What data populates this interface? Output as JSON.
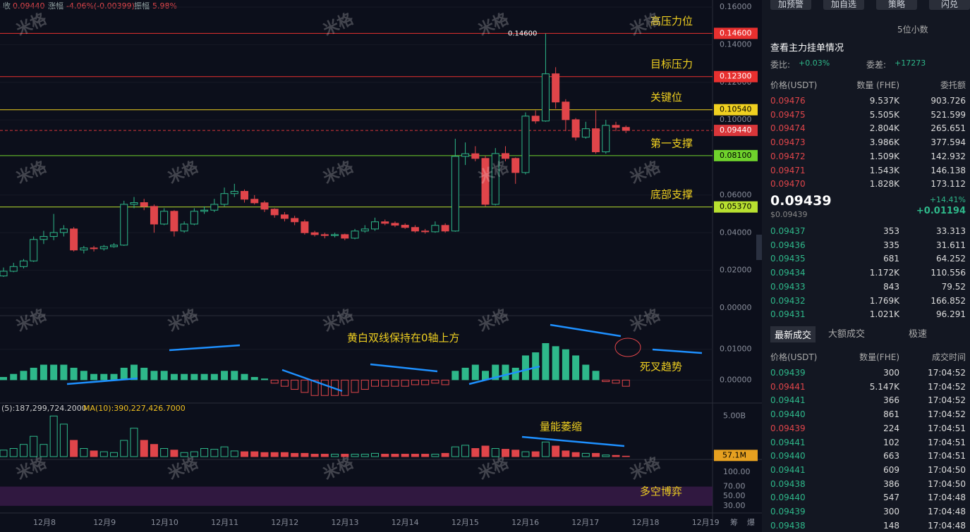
{
  "header": {
    "close_label": "收",
    "close": "0.09440",
    "change_label": "涨幅",
    "change": "-4.06%(-0.00399)",
    "amp_label": "振幅",
    "amp": "5.98%"
  },
  "watermark": "米格",
  "price_chart": {
    "ylim": [
      0,
      0.16
    ],
    "yticks": [
      {
        "value": 0.16,
        "label": "0.16000"
      },
      {
        "value": 0.14,
        "label": "0.14000"
      },
      {
        "value": 0.12,
        "label": "0.12000"
      },
      {
        "value": 0.1,
        "label": "0.10000"
      },
      {
        "value": 0.06,
        "label": "0.06000"
      },
      {
        "value": 0.04,
        "label": "0.04000"
      },
      {
        "value": 0.02,
        "label": "0.02000"
      },
      {
        "value": 0,
        "label": "0.00000"
      }
    ],
    "up_color": "#2eb88a",
    "down_color": "#e0454a",
    "candles": [
      [
        0.017,
        0.0215,
        0.0165,
        0.0195
      ],
      [
        0.0195,
        0.024,
        0.019,
        0.022
      ],
      [
        0.022,
        0.026,
        0.021,
        0.025
      ],
      [
        0.025,
        0.038,
        0.0245,
        0.0364
      ],
      [
        0.0364,
        0.041,
        0.034,
        0.038
      ],
      [
        0.038,
        0.05,
        0.036,
        0.0401
      ],
      [
        0.0401,
        0.044,
        0.038,
        0.042
      ],
      [
        0.042,
        0.043,
        0.03,
        0.0308
      ],
      [
        0.0308,
        0.033,
        0.029,
        0.0319
      ],
      [
        0.0319,
        0.033,
        0.03,
        0.0315
      ],
      [
        0.0315,
        0.0335,
        0.0305,
        0.0326
      ],
      [
        0.0326,
        0.0345,
        0.032,
        0.0334
      ],
      [
        0.0334,
        0.057,
        0.033,
        0.0551
      ],
      [
        0.0551,
        0.059,
        0.053,
        0.056
      ],
      [
        0.056,
        0.058,
        0.052,
        0.054
      ],
      [
        0.054,
        0.055,
        0.04,
        0.0446
      ],
      [
        0.0446,
        0.053,
        0.044,
        0.0514
      ],
      [
        0.0514,
        0.052,
        0.038,
        0.0409
      ],
      [
        0.0409,
        0.046,
        0.04,
        0.0446
      ],
      [
        0.0446,
        0.053,
        0.044,
        0.0514
      ],
      [
        0.0514,
        0.054,
        0.05,
        0.052
      ],
      [
        0.052,
        0.058,
        0.051,
        0.0551
      ],
      [
        0.0551,
        0.064,
        0.054,
        0.0608
      ],
      [
        0.0608,
        0.066,
        0.059,
        0.062
      ],
      [
        0.062,
        0.063,
        0.056,
        0.0578
      ],
      [
        0.0578,
        0.06,
        0.055,
        0.0559
      ],
      [
        0.0559,
        0.057,
        0.051,
        0.0525
      ],
      [
        0.0525,
        0.053,
        0.048,
        0.0495
      ],
      [
        0.0495,
        0.051,
        0.046,
        0.0476
      ],
      [
        0.0476,
        0.049,
        0.044,
        0.0458
      ],
      [
        0.0458,
        0.047,
        0.039,
        0.04
      ],
      [
        0.04,
        0.041,
        0.038,
        0.039
      ],
      [
        0.039,
        0.04,
        0.037,
        0.0385
      ],
      [
        0.0385,
        0.04,
        0.0375,
        0.039
      ],
      [
        0.039,
        0.0395,
        0.036,
        0.0371
      ],
      [
        0.0371,
        0.042,
        0.0365,
        0.0409
      ],
      [
        0.0409,
        0.044,
        0.04,
        0.042
      ],
      [
        0.042,
        0.048,
        0.041,
        0.0458
      ],
      [
        0.0458,
        0.047,
        0.044,
        0.045
      ],
      [
        0.045,
        0.046,
        0.043,
        0.044
      ],
      [
        0.044,
        0.045,
        0.042,
        0.0428
      ],
      [
        0.0428,
        0.044,
        0.04,
        0.0409
      ],
      [
        0.0409,
        0.042,
        0.0395,
        0.0405
      ],
      [
        0.0405,
        0.046,
        0.04,
        0.0439
      ],
      [
        0.0439,
        0.045,
        0.04,
        0.0409
      ],
      [
        0.0409,
        0.09,
        0.0405,
        0.0806
      ],
      [
        0.0806,
        0.088,
        0.076,
        0.082
      ],
      [
        0.082,
        0.086,
        0.078,
        0.0795
      ],
      [
        0.0795,
        0.081,
        0.054,
        0.0551
      ],
      [
        0.0551,
        0.085,
        0.0545,
        0.0821
      ],
      [
        0.0821,
        0.086,
        0.078,
        0.0795
      ],
      [
        0.0795,
        0.08,
        0.066,
        0.072
      ],
      [
        0.072,
        0.104,
        0.071,
        0.102
      ],
      [
        0.102,
        0.105,
        0.098,
        0.0994
      ],
      [
        0.0994,
        0.146,
        0.099,
        0.1245
      ],
      [
        0.1245,
        0.128,
        0.106,
        0.1095
      ],
      [
        0.1095,
        0.111,
        0.094,
        0.1001
      ],
      [
        0.1001,
        0.101,
        0.089,
        0.0908
      ],
      [
        0.0908,
        0.099,
        0.09,
        0.0953
      ],
      [
        0.0953,
        0.105,
        0.082,
        0.083
      ],
      [
        0.083,
        0.1,
        0.082,
        0.0971
      ],
      [
        0.0971,
        0.099,
        0.094,
        0.096
      ],
      [
        0.096,
        0.097,
        0.093,
        0.0944
      ]
    ],
    "levels": [
      {
        "value": 0.146,
        "label": "0.14600",
        "color": "#e8302f",
        "note": "高压力位"
      },
      {
        "value": 0.123,
        "label": "0.12300",
        "color": "#e8302f",
        "note": "目标压力"
      },
      {
        "value": 0.1054,
        "label": "0.10540",
        "color": "#f0d020",
        "note": "关键位"
      },
      {
        "value": 0.0944,
        "label": "0.09440",
        "color": "#d9363a",
        "dashed": true
      },
      {
        "value": 0.081,
        "label": "0.08100",
        "color": "#6fd22c",
        "note": "第一支撑"
      },
      {
        "value": 0.0537,
        "label": "0.05370",
        "color": "#b8e030",
        "note": "底部支撑"
      }
    ]
  },
  "macd": {
    "ylim": [
      -0.007,
      0.02
    ],
    "yticks": [
      {
        "value": 0.01,
        "label": "0.01000"
      },
      {
        "value": 0,
        "label": "0.00000"
      }
    ],
    "values": [
      0.001,
      0.002,
      0.003,
      0.004,
      0.005,
      0.005,
      0.005,
      0.004,
      0.003,
      0.002,
      0.002,
      0.002,
      0.004,
      0.005,
      0.004,
      0.003,
      0.003,
      0.002,
      0.002,
      0.002,
      0.002,
      0.002,
      0.003,
      0.003,
      0.002,
      0.001,
      0.0005,
      -0.001,
      -0.002,
      -0.003,
      -0.004,
      -0.005,
      -0.005,
      -0.005,
      -0.005,
      -0.004,
      -0.003,
      -0.002,
      -0.002,
      -0.002,
      -0.002,
      -0.0015,
      -0.0015,
      -0.001,
      -0.0015,
      0.003,
      0.004,
      0.005,
      0.003,
      0.005,
      0.005,
      0.004,
      0.008,
      0.009,
      0.012,
      0.011,
      0.01,
      0.008,
      0.005,
      0.003,
      -0.0005,
      -0.001,
      -0.002
    ],
    "notes": [
      "黄白双线保持在0轴上方",
      "死叉趋势"
    ]
  },
  "volume": {
    "legend": "(5):187,299,724.2000",
    "ma10": "MA(10):390,227,426.7000",
    "ylim": [
      0,
      5900000000
    ],
    "yticks": [
      {
        "value": 5000000000,
        "label": "5.00B"
      }
    ],
    "last_label": "57.1M",
    "note": "量能萎缩",
    "values": [
      800000000,
      1000000000,
      1500000000,
      2500000000,
      1500000000,
      5000000000,
      4000000000,
      2000000000,
      1000000000,
      700000000,
      600000000,
      500000000,
      2000000000,
      3500000000,
      2000000000,
      1500000000,
      1000000000,
      800000000,
      500000000,
      600000000,
      1000000000,
      900000000,
      1200000000,
      700000000,
      600000000,
      600000000,
      500000000,
      500000000,
      500000000,
      400000000,
      400000000,
      300000000,
      300000000,
      300000000,
      300000000,
      300000000,
      300000000,
      400000000,
      300000000,
      300000000,
      300000000,
      300000000,
      300000000,
      300000000,
      400000000,
      1200000000,
      1400000000,
      1000000000,
      1300000000,
      1000000000,
      900000000,
      800000000,
      600000000,
      600000000,
      1800000000,
      1300000000,
      700000000,
      500000000,
      400000000,
      400000000,
      200000000,
      150000000,
      57100000
    ]
  },
  "rsi": {
    "ylim": [
      24,
      122
    ],
    "band": [
      30,
      70
    ],
    "yticks": [
      {
        "value": 100,
        "label": "100.00"
      },
      {
        "value": 70,
        "label": "70.00"
      },
      {
        "value": 50,
        "label": "50.00"
      },
      {
        "value": 30,
        "label": "30.00"
      }
    ],
    "note": "多空博弈"
  },
  "xaxis": [
    "12月8",
    "12月9",
    "12月10",
    "12月11",
    "12月12",
    "12月13",
    "12月14",
    "12月15",
    "12月16",
    "12月17",
    "12月18",
    "12月19"
  ],
  "xaxis_extra": [
    "筹",
    "爆"
  ],
  "panel": {
    "buttons": [
      "加预警",
      "加自选",
      "策略",
      "闪兑"
    ],
    "decimals": "5位小数",
    "main_orders": "查看主力挂单情况",
    "ratio_label": "委比:",
    "ratio": "+0.03%",
    "diff_label": "委差:",
    "diff": "+17273",
    "book_headers": [
      "价格(USDT)",
      "数量 (FHE)",
      "委托额"
    ],
    "asks": [
      [
        "0.09476",
        "9.537K",
        "903.726"
      ],
      [
        "0.09475",
        "5.505K",
        "521.599"
      ],
      [
        "0.09474",
        "2.804K",
        "265.651"
      ],
      [
        "0.09473",
        "3.986K",
        "377.594"
      ],
      [
        "0.09472",
        "1.509K",
        "142.932"
      ],
      [
        "0.09471",
        "1.543K",
        "146.138"
      ],
      [
        "0.09470",
        "1.828K",
        "173.112"
      ]
    ],
    "last_price": "0.09439",
    "last_usd": "$0.09439",
    "change_pct": "+14.41%",
    "change_abs": "+0.01194",
    "bids": [
      [
        "0.09437",
        "353",
        "33.313"
      ],
      [
        "0.09436",
        "335",
        "31.611"
      ],
      [
        "0.09435",
        "681",
        "64.252"
      ],
      [
        "0.09434",
        "1.172K",
        "110.556"
      ],
      [
        "0.09433",
        "843",
        "79.52"
      ],
      [
        "0.09432",
        "1.769K",
        "166.852"
      ],
      [
        "0.09431",
        "1.021K",
        "96.291"
      ]
    ],
    "tabs": [
      "最新成交",
      "大额成交",
      "极速"
    ],
    "trade_headers": [
      "价格(USDT)",
      "数量(FHE)",
      "成交时间"
    ],
    "trades": [
      {
        "price": "0.09439",
        "qty": "300",
        "time": "17:04:52",
        "color": "#2eb88a"
      },
      {
        "price": "0.09441",
        "qty": "5.147K",
        "time": "17:04:52",
        "color": "#e0454a"
      },
      {
        "price": "0.09441",
        "qty": "366",
        "time": "17:04:52",
        "color": "#2eb88a"
      },
      {
        "price": "0.09440",
        "qty": "861",
        "time": "17:04:52",
        "color": "#2eb88a"
      },
      {
        "price": "0.09439",
        "qty": "224",
        "time": "17:04:51",
        "color": "#e0454a"
      },
      {
        "price": "0.09441",
        "qty": "102",
        "time": "17:04:51",
        "color": "#2eb88a"
      },
      {
        "price": "0.09440",
        "qty": "663",
        "time": "17:04:51",
        "color": "#2eb88a"
      },
      {
        "price": "0.09441",
        "qty": "609",
        "time": "17:04:50",
        "color": "#2eb88a"
      },
      {
        "price": "0.09438",
        "qty": "386",
        "time": "17:04:50",
        "color": "#2eb88a"
      },
      {
        "price": "0.09440",
        "qty": "547",
        "time": "17:04:48",
        "color": "#2eb88a"
      },
      {
        "price": "0.09439",
        "qty": "300",
        "time": "17:04:48",
        "color": "#2eb88a"
      },
      {
        "price": "0.09438",
        "qty": "148",
        "time": "17:04:48",
        "color": "#2eb88a"
      }
    ]
  }
}
